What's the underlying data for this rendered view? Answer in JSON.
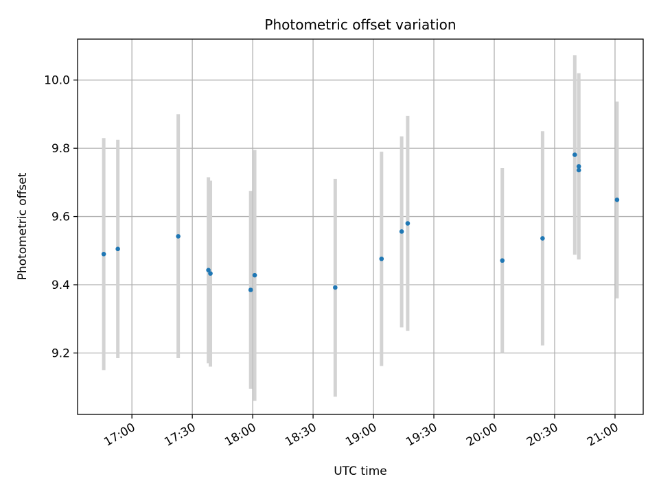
{
  "chart_data": {
    "type": "scatter",
    "title": "Photometric offset variation",
    "xlabel": "UTC time",
    "ylabel": "Photometric offset",
    "grid": true,
    "x_tick_labels": [
      "17:00",
      "17:30",
      "18:00",
      "18:30",
      "19:00",
      "19:30",
      "20:00",
      "20:30",
      "21:00"
    ],
    "x_tick_times": [
      "17:00",
      "17:30",
      "18:00",
      "18:30",
      "19:00",
      "19:30",
      "20:00",
      "20:30",
      "21:00"
    ],
    "xlim": [
      "16:33",
      "21:14"
    ],
    "y_ticks": [
      "9.2",
      "9.4",
      "9.6",
      "9.8",
      "10.0"
    ],
    "ylim": [
      9.02,
      10.12
    ],
    "colors": {
      "point": "#1f77b4",
      "errorbar": "#d3d3d3",
      "grid": "#b0b0b0"
    },
    "points": [
      {
        "x": "16:46",
        "y": 9.49,
        "ylow": 9.15,
        "yhigh": 9.83
      },
      {
        "x": "16:53",
        "y": 9.505,
        "ylow": 9.185,
        "yhigh": 9.825
      },
      {
        "x": "17:23",
        "y": 9.542,
        "ylow": 9.185,
        "yhigh": 9.9
      },
      {
        "x": "17:38",
        "y": 9.443,
        "ylow": 9.17,
        "yhigh": 9.715
      },
      {
        "x": "17:39",
        "y": 9.433,
        "ylow": 9.16,
        "yhigh": 9.705
      },
      {
        "x": "17:59",
        "y": 9.385,
        "ylow": 9.095,
        "yhigh": 9.675
      },
      {
        "x": "18:01",
        "y": 9.428,
        "ylow": 9.06,
        "yhigh": 9.795
      },
      {
        "x": "18:41",
        "y": 9.392,
        "ylow": 9.072,
        "yhigh": 9.71
      },
      {
        "x": "19:04",
        "y": 9.476,
        "ylow": 9.162,
        "yhigh": 9.79
      },
      {
        "x": "19:14",
        "y": 9.556,
        "ylow": 9.275,
        "yhigh": 9.835
      },
      {
        "x": "19:17",
        "y": 9.58,
        "ylow": 9.265,
        "yhigh": 9.895
      },
      {
        "x": "20:04",
        "y": 9.471,
        "ylow": 9.2,
        "yhigh": 9.742
      },
      {
        "x": "20:24",
        "y": 9.536,
        "ylow": 9.222,
        "yhigh": 9.85
      },
      {
        "x": "20:40",
        "y": 9.781,
        "ylow": 9.488,
        "yhigh": 10.073
      },
      {
        "x": "20:42",
        "y": 9.747,
        "ylow": 9.474,
        "yhigh": 10.02
      },
      {
        "x": "20:42",
        "y": 9.736,
        "ylow": 9.475,
        "yhigh": 9.998
      },
      {
        "x": "21:01",
        "y": 9.649,
        "ylow": 9.36,
        "yhigh": 9.937
      }
    ]
  }
}
